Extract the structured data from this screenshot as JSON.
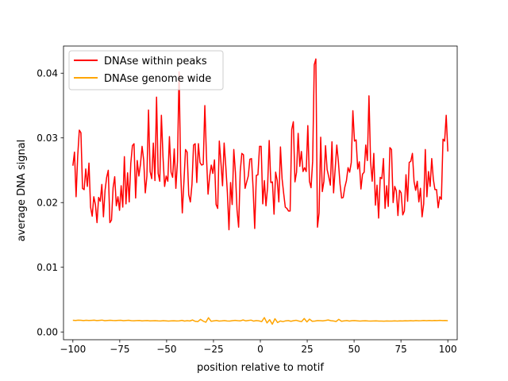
{
  "chart_data": {
    "type": "line",
    "xlabel": "position relative to motif",
    "ylabel": "average DNA signal",
    "xlim": [
      -105,
      105
    ],
    "ylim": [
      -0.0012,
      0.0442
    ],
    "xticks": [
      -100,
      -75,
      -50,
      -25,
      0,
      25,
      50,
      75,
      100
    ],
    "xtick_labels": [
      "−100",
      "−75",
      "−50",
      "−25",
      "0",
      "25",
      "50",
      "75",
      "100"
    ],
    "yticks": [
      0.0,
      0.01,
      0.02,
      0.03,
      0.04
    ],
    "ytick_labels": [
      "0.00",
      "0.01",
      "0.02",
      "0.03",
      "0.04"
    ],
    "grid": false,
    "legend_position": "top-left",
    "series": [
      {
        "name": "DNAse within peaks",
        "color": "#ff0000",
        "x_start": -100,
        "x_step": 1,
        "values": [
          0.0257,
          0.0278,
          0.0209,
          0.0272,
          0.0312,
          0.0308,
          0.0222,
          0.022,
          0.0252,
          0.0225,
          0.0261,
          0.0193,
          0.0179,
          0.0209,
          0.0197,
          0.0169,
          0.0208,
          0.0202,
          0.0228,
          0.0178,
          0.0219,
          0.0239,
          0.025,
          0.0169,
          0.0173,
          0.0223,
          0.024,
          0.0195,
          0.0209,
          0.0188,
          0.0226,
          0.0193,
          0.0271,
          0.0198,
          0.0246,
          0.0201,
          0.0261,
          0.0288,
          0.0291,
          0.0207,
          0.0265,
          0.0241,
          0.0259,
          0.0287,
          0.0266,
          0.0215,
          0.0241,
          0.0343,
          0.0248,
          0.0237,
          0.0292,
          0.0234,
          0.0363,
          0.0245,
          0.0233,
          0.0335,
          0.0271,
          0.0225,
          0.0241,
          0.0233,
          0.0302,
          0.0247,
          0.0239,
          0.0283,
          0.0222,
          0.0264,
          0.0402,
          0.0246,
          0.0184,
          0.0232,
          0.0282,
          0.0278,
          0.0212,
          0.0201,
          0.0228,
          0.0289,
          0.0291,
          0.0231,
          0.0291,
          0.0262,
          0.0258,
          0.0259,
          0.035,
          0.0273,
          0.0213,
          0.0241,
          0.0258,
          0.0245,
          0.0266,
          0.0197,
          0.0191,
          0.0295,
          0.0262,
          0.0226,
          0.0292,
          0.0257,
          0.0216,
          0.0158,
          0.0231,
          0.0197,
          0.0282,
          0.0247,
          0.0189,
          0.0162,
          0.0248,
          0.0276,
          0.0274,
          0.0222,
          0.0232,
          0.0241,
          0.0267,
          0.0268,
          0.0222,
          0.016,
          0.0242,
          0.0243,
          0.0287,
          0.0287,
          0.0198,
          0.0234,
          0.0195,
          0.0224,
          0.0296,
          0.0231,
          0.0232,
          0.0182,
          0.0247,
          0.0234,
          0.0201,
          0.0286,
          0.0237,
          0.0214,
          0.0193,
          0.0191,
          0.0187,
          0.0187,
          0.0313,
          0.0325,
          0.0232,
          0.0247,
          0.0307,
          0.0256,
          0.0279,
          0.0248,
          0.0254,
          0.0248,
          0.0319,
          0.0233,
          0.0223,
          0.0264,
          0.0413,
          0.0422,
          0.0162,
          0.0184,
          0.0301,
          0.0217,
          0.0233,
          0.0288,
          0.0251,
          0.024,
          0.0227,
          0.0294,
          0.0215,
          0.0252,
          0.0289,
          0.0263,
          0.0229,
          0.0207,
          0.0208,
          0.0224,
          0.0234,
          0.0254,
          0.0247,
          0.0262,
          0.0342,
          0.0295,
          0.0297,
          0.0252,
          0.0263,
          0.0221,
          0.0244,
          0.0247,
          0.0289,
          0.0265,
          0.0365,
          0.0263,
          0.0233,
          0.0276,
          0.0196,
          0.0227,
          0.0176,
          0.0239,
          0.0237,
          0.0268,
          0.0191,
          0.0226,
          0.0194,
          0.0285,
          0.0282,
          0.02,
          0.0225,
          0.0218,
          0.018,
          0.0219,
          0.0215,
          0.0181,
          0.0187,
          0.0243,
          0.0202,
          0.0262,
          0.0264,
          0.0276,
          0.0233,
          0.0219,
          0.0233,
          0.0201,
          0.0222,
          0.0178,
          0.0198,
          0.0282,
          0.0209,
          0.0248,
          0.0225,
          0.0268,
          0.0236,
          0.022,
          0.022,
          0.0192,
          0.0209,
          0.0205,
          0.0298,
          0.0295,
          0.0335,
          0.0279
        ],
        "x_step_override": 0.9090909
      },
      {
        "name": "DNAse genome wide",
        "color": "#ffa500",
        "x_start": -100,
        "x_step": 1,
        "values": [
          0.0018,
          0.00178,
          0.00182,
          0.0018,
          0.00176,
          0.00181,
          0.00177,
          0.00179,
          0.00182,
          0.00176,
          0.00179,
          0.00183,
          0.00175,
          0.00178,
          0.00181,
          0.00177,
          0.00176,
          0.00179,
          0.0018,
          0.00174,
          0.00177,
          0.0018,
          0.00175,
          0.00173,
          0.00176,
          0.00177,
          0.00172,
          0.00174,
          0.00176,
          0.00171,
          0.00173,
          0.00174,
          0.00171,
          0.0017,
          0.00174,
          0.00172,
          0.00169,
          0.00171,
          0.00173,
          0.0017,
          0.00172,
          0.00179,
          0.00168,
          0.00175,
          0.0017,
          0.00185,
          0.00165,
          0.0016,
          0.00195,
          0.00168,
          0.0015,
          0.0022,
          0.00165,
          0.00172,
          0.00178,
          0.00168,
          0.00171,
          0.00176,
          0.0017,
          0.00168,
          0.00174,
          0.00179,
          0.00175,
          0.00172,
          0.00185,
          0.00172,
          0.00178,
          0.00183,
          0.00168,
          0.00176,
          0.00171,
          0.0016,
          0.00222,
          0.0014,
          0.0019,
          0.0012,
          0.00205,
          0.00145,
          0.0017,
          0.0016,
          0.00172,
          0.00176,
          0.00165,
          0.00175,
          0.0018,
          0.00168,
          0.0016,
          0.00208,
          0.00155,
          0.00198,
          0.00165,
          0.00168,
          0.00176,
          0.00175,
          0.00172,
          0.00178,
          0.00185,
          0.00175,
          0.0017,
          0.00162,
          0.00195,
          0.00165,
          0.00172,
          0.00176,
          0.00168,
          0.00174,
          0.00176,
          0.00172,
          0.00169,
          0.00171,
          0.00173,
          0.0017,
          0.00168,
          0.0017,
          0.00172,
          0.00168,
          0.00169,
          0.00167,
          0.0017,
          0.00169,
          0.00168,
          0.00171,
          0.00169,
          0.00172,
          0.0017,
          0.00173,
          0.00171,
          0.00174,
          0.00172,
          0.00176,
          0.00173,
          0.00175,
          0.00178,
          0.00174,
          0.00177,
          0.00175,
          0.00178,
          0.00176,
          0.00179,
          0.00176,
          0.00177,
          0.00175
        ],
        "x_step_override": 1.4285714
      }
    ]
  }
}
